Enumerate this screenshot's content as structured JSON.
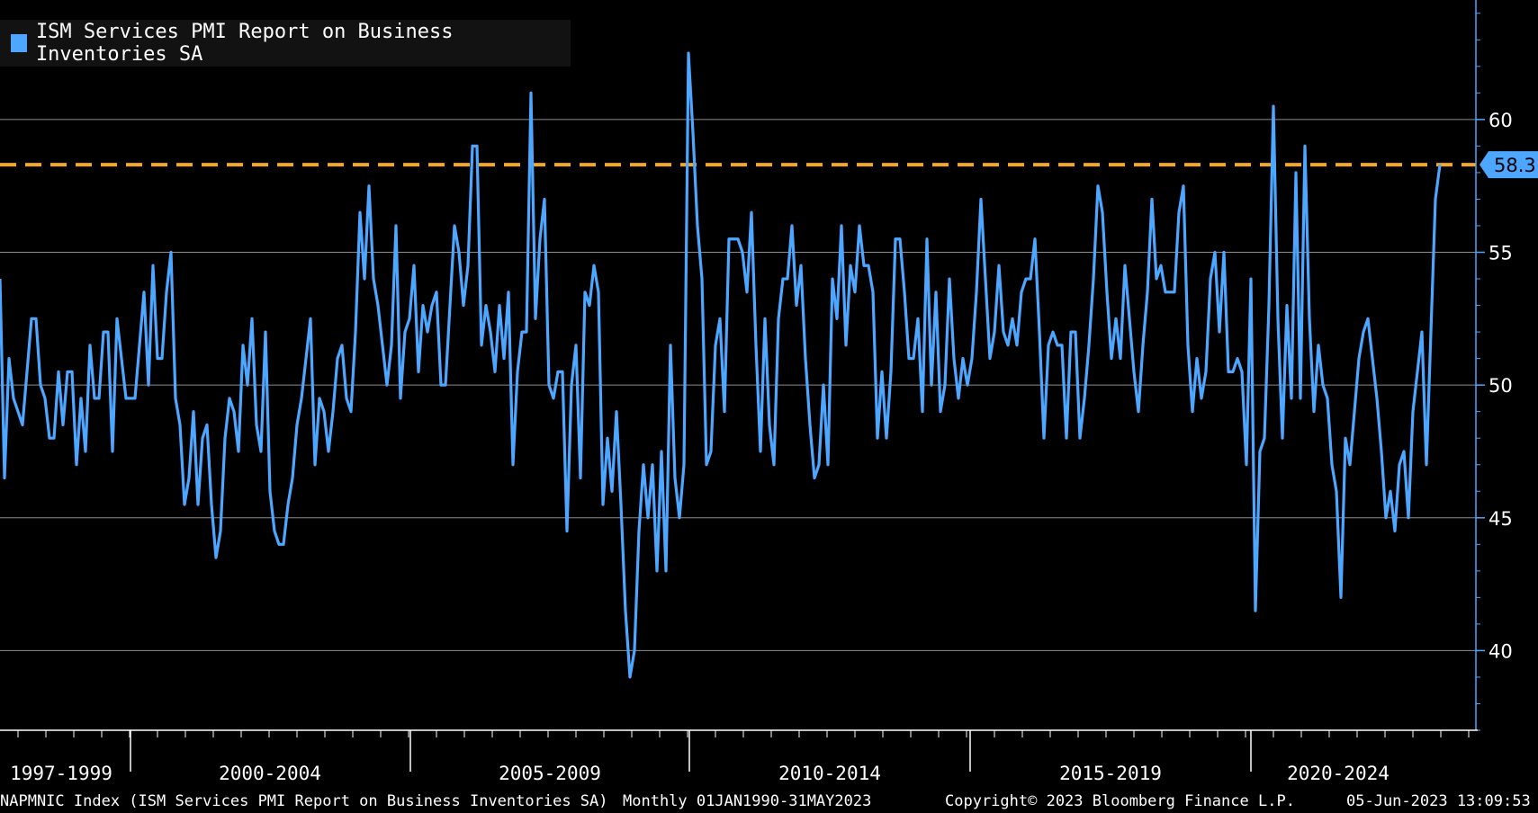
{
  "colors": {
    "background": "#000000",
    "line": "#4da6ff",
    "reference_line": "#f5a623",
    "grid": "#bdbdbd",
    "axis": "#4da6ff",
    "last_value_badge": "#4da6ff"
  },
  "legend": {
    "label": "ISM Services PMI Report on Business Inventories SA"
  },
  "footer": {
    "ticker": "NAPMNIC Index (ISM Services PMI Report on Business Inventories SA)",
    "frequency_range": "Monthly 01JAN1990-31MAY2023",
    "copyright": "Copyright© 2023 Bloomberg Finance L.P.",
    "timestamp": "05-Jun-2023 13:09:53"
  },
  "chart_data": {
    "type": "line",
    "series": [
      {
        "name": "ISM Services PMI Report on Business Inventories SA",
        "values": [
          54.0,
          46.5,
          51.0,
          49.5,
          49.0,
          48.5,
          50.5,
          52.5,
          52.5,
          50.0,
          49.5,
          48.0,
          48.0,
          50.5,
          48.5,
          50.5,
          50.5,
          47.0,
          49.5,
          47.5,
          51.5,
          49.5,
          49.5,
          52.0,
          52.0,
          47.5,
          52.5,
          51.0,
          49.5,
          49.5,
          49.5,
          51.5,
          53.5,
          50.0,
          54.5,
          51.0,
          51.0,
          53.5,
          55.0,
          49.5,
          48.5,
          45.5,
          46.5,
          49.0,
          45.5,
          48.0,
          48.5,
          45.5,
          43.5,
          44.5,
          48.0,
          49.5,
          49.0,
          47.5,
          51.5,
          50.0,
          52.5,
          48.5,
          47.5,
          52.0,
          46.0,
          44.5,
          44.0,
          44.0,
          45.5,
          46.5,
          48.5,
          49.5,
          51.0,
          52.5,
          47.0,
          49.5,
          49.0,
          47.5,
          49.0,
          51.0,
          51.5,
          49.5,
          49.0,
          52.0,
          56.5,
          54.0,
          57.5,
          54.0,
          53.0,
          51.5,
          50.0,
          51.5,
          56.0,
          49.5,
          52.0,
          52.5,
          54.5,
          50.5,
          53.0,
          52.0,
          53.0,
          53.5,
          50.0,
          50.0,
          53.0,
          56.0,
          55.0,
          53.0,
          54.5,
          59.0,
          59.0,
          51.5,
          53.0,
          52.0,
          50.5,
          53.0,
          51.0,
          53.5,
          47.0,
          50.5,
          52.0,
          52.0,
          61.0,
          52.5,
          55.5,
          57.0,
          50.0,
          49.5,
          50.5,
          50.5,
          44.5,
          50.0,
          51.5,
          46.5,
          53.5,
          53.0,
          54.5,
          53.5,
          45.5,
          48.0,
          46.0,
          49.0,
          45.5,
          41.5,
          39.0,
          40.0,
          44.5,
          47.0,
          45.0,
          47.0,
          43.0,
          47.5,
          43.0,
          51.5,
          46.5,
          45.0,
          47.0,
          62.5,
          59.5,
          56.0,
          54.0,
          47.0,
          47.5,
          51.5,
          52.5,
          49.0,
          55.5,
          55.5,
          55.5,
          55.0,
          53.5,
          56.5,
          51.5,
          47.5,
          52.5,
          48.5,
          47.0,
          52.5,
          54.0,
          54.0,
          56.0,
          53.0,
          54.5,
          51.0,
          48.5,
          46.5,
          47.0,
          50.0,
          47.0,
          54.0,
          52.5,
          56.0,
          51.5,
          54.5,
          53.5,
          56.0,
          54.5,
          54.5,
          53.5,
          48.0,
          50.5,
          48.0,
          50.5,
          55.5,
          55.5,
          53.5,
          51.0,
          51.0,
          52.5,
          49.0,
          55.5,
          50.0,
          53.5,
          49.0,
          50.0,
          54.0,
          51.0,
          49.5,
          51.0,
          50.0,
          51.0,
          53.5,
          57.0,
          54.0,
          51.0,
          52.0,
          54.5,
          52.0,
          51.5,
          52.5,
          51.5,
          53.5,
          54.0,
          54.0,
          55.5,
          52.0,
          48.0,
          51.5,
          52.0,
          51.5,
          51.5,
          48.0,
          52.0,
          52.0,
          48.0,
          49.5,
          51.5,
          54.0,
          57.5,
          56.5,
          53.5,
          51.0,
          52.5,
          51.0,
          54.5,
          52.5,
          50.5,
          49.0,
          51.5,
          53.5,
          57.0,
          54.0,
          54.5,
          53.5,
          53.5,
          53.5,
          56.5,
          57.5,
          51.5,
          49.0,
          51.0,
          49.5,
          50.5,
          54.0,
          55.0,
          52.0,
          55.0,
          50.5,
          50.5,
          51.0,
          50.5,
          47.0,
          54.0,
          41.5,
          47.5,
          48.0,
          53.0,
          60.5,
          52.5,
          48.0,
          53.0,
          49.5,
          58.0,
          49.5,
          59.0,
          52.5,
          49.0,
          51.5,
          50.0,
          49.5,
          47.0,
          46.0,
          42.0,
          48.0,
          47.0,
          49.0,
          51.0,
          52.0,
          52.5,
          51.0,
          49.5,
          47.5,
          45.0,
          46.0,
          44.5,
          47.0,
          47.5,
          45.0,
          49.0,
          50.5,
          52.0,
          47.0,
          52.0,
          57.0,
          58.3
        ]
      }
    ],
    "x_tick_labels": [
      "1997-1999",
      "2000-2004",
      "2005-2009",
      "2010-2014",
      "2015-2019",
      "2020-2024"
    ],
    "y_ticks": [
      40,
      45,
      50,
      55,
      60
    ],
    "ylim": [
      37.0,
      64.5
    ],
    "reference_line": {
      "value": 58.3,
      "style": "dashed"
    },
    "last_value_label": "58.3",
    "grid": true,
    "legend_position": "top-left"
  }
}
